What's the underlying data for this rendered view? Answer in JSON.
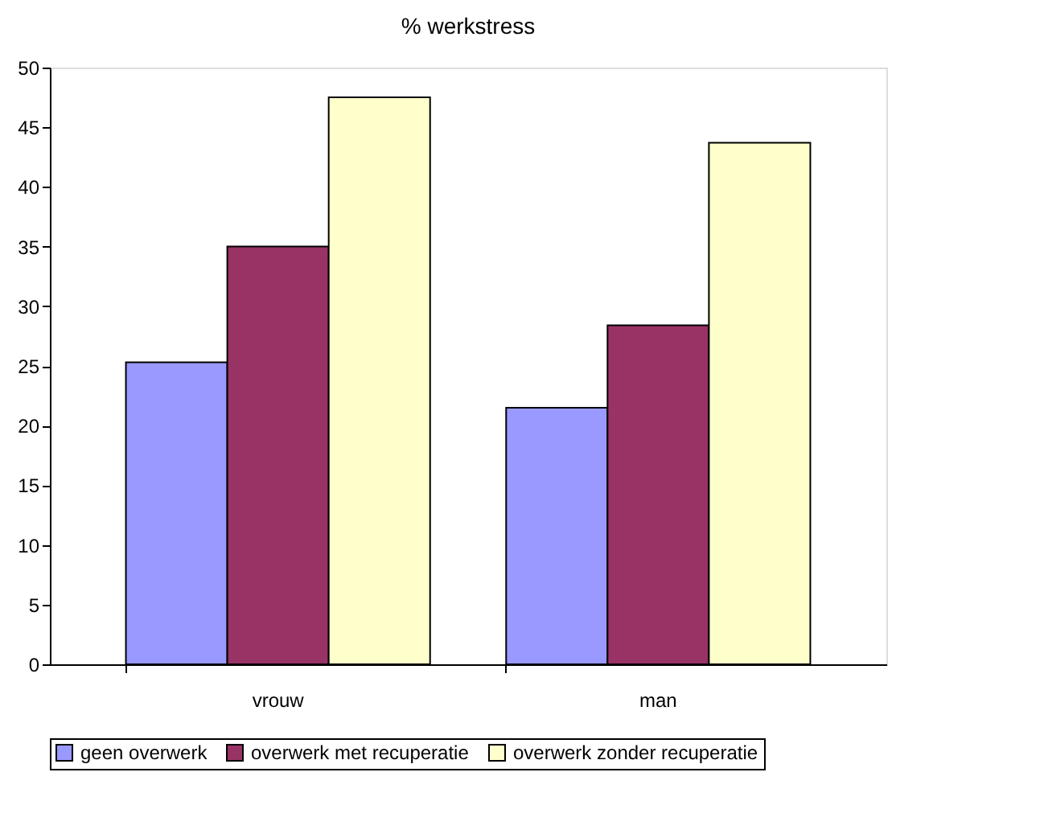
{
  "chart_data": {
    "type": "bar",
    "title": "% werkstress",
    "categories": [
      "vrouw",
      "man"
    ],
    "series": [
      {
        "name": "geen overwerk",
        "color": "#9999ff",
        "values": [
          25.3,
          21.5
        ]
      },
      {
        "name": "overwerk met recuperatie",
        "color": "#993366",
        "values": [
          35.0,
          28.4
        ]
      },
      {
        "name": "overwerk zonder recuperatie",
        "color": "#ffffcc",
        "values": [
          47.5,
          43.7
        ]
      }
    ],
    "ylim": [
      0,
      50
    ],
    "yticks": [
      0,
      5,
      10,
      15,
      20,
      25,
      30,
      35,
      40,
      45,
      50
    ],
    "grid": false,
    "legend": "bottom"
  }
}
